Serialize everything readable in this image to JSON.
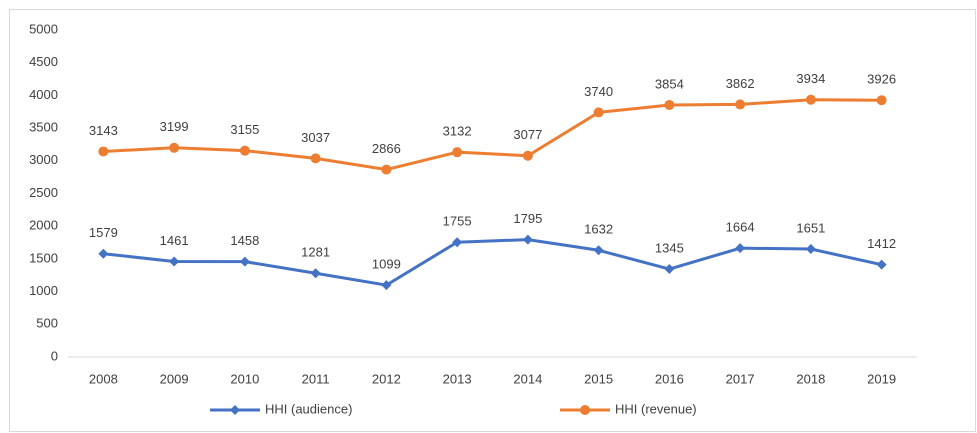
{
  "chart_data": {
    "type": "line",
    "categories": [
      "2008",
      "2009",
      "2010",
      "2011",
      "2012",
      "2013",
      "2014",
      "2015",
      "2016",
      "2017",
      "2018",
      "2019"
    ],
    "series": [
      {
        "name": "HHI (audience)",
        "color": "#4472c4",
        "marker": "diamond",
        "values": [
          1579,
          1461,
          1458,
          1281,
          1099,
          1755,
          1795,
          1632,
          1345,
          1664,
          1651,
          1412
        ]
      },
      {
        "name": "HHI (revenue)",
        "color": "#ed7d31",
        "marker": "circle",
        "values": [
          3143,
          3199,
          3155,
          3037,
          2866,
          3132,
          3077,
          3740,
          3854,
          3862,
          3934,
          3926
        ]
      }
    ],
    "ylim": [
      0,
      5000
    ],
    "yticks": [
      0,
      500,
      1000,
      1500,
      2000,
      2500,
      3000,
      3500,
      4000,
      4500,
      5000
    ],
    "grid": false,
    "legend": "bottom"
  }
}
